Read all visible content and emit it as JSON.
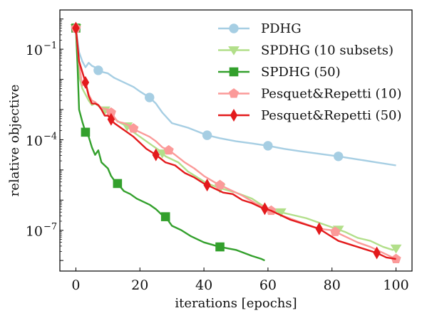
{
  "chart_data": {
    "type": "line",
    "title": "",
    "xlabel": "iterations [epochs]",
    "ylabel": "relative objective",
    "xlim": [
      -5,
      105
    ],
    "ylim_log10": [
      -8.35,
      0.3
    ],
    "yscale": "log",
    "x_ticks": [
      {
        "value": 0,
        "label": "0"
      },
      {
        "value": 20,
        "label": "20"
      },
      {
        "value": 40,
        "label": "40"
      },
      {
        "value": 60,
        "label": "60"
      },
      {
        "value": 80,
        "label": "80"
      },
      {
        "value": 100,
        "label": "100"
      }
    ],
    "y_ticks": [
      {
        "log10": -1,
        "base": "10",
        "exp": "−1"
      },
      {
        "log10": -4,
        "base": "10",
        "exp": "−4"
      },
      {
        "log10": -7,
        "base": "10",
        "exp": "−7"
      }
    ],
    "grid": false,
    "legend_position": "top-right",
    "series": [
      {
        "name": "PDHG",
        "color": "#a6cee3",
        "marker": "circle",
        "x": [
          0,
          1,
          2,
          3,
          4,
          5,
          6,
          7,
          8,
          10,
          12,
          14,
          16,
          18,
          20,
          23,
          25,
          27,
          30,
          35,
          41,
          45,
          50,
          55,
          60,
          65,
          70,
          75,
          82,
          88,
          94,
          100
        ],
        "log10": [
          -0.3,
          -1.1,
          -1.4,
          -1.6,
          -1.45,
          -1.55,
          -1.6,
          -1.7,
          -1.75,
          -1.8,
          -1.95,
          -2.05,
          -2.15,
          -2.25,
          -2.4,
          -2.6,
          -2.8,
          -3.1,
          -3.45,
          -3.6,
          -3.85,
          -3.95,
          -4.05,
          -4.12,
          -4.2,
          -4.3,
          -4.38,
          -4.45,
          -4.55,
          -4.65,
          -4.75,
          -4.85
        ],
        "markers_x": [
          0,
          7,
          23,
          41,
          60,
          82
        ]
      },
      {
        "name": "SPDHG (10 subsets)",
        "color": "#b2df8a",
        "marker": "triangle-down",
        "x": [
          0,
          1,
          2,
          3,
          4,
          5,
          6,
          8,
          10,
          12,
          14,
          16,
          18,
          20,
          22,
          24,
          26,
          28,
          30,
          32,
          35,
          38,
          41,
          45,
          50,
          55,
          60,
          64,
          68,
          72,
          76,
          80,
          84,
          88,
          92,
          96,
          99,
          100
        ],
        "log10": [
          -0.3,
          -1.9,
          -2.3,
          -2.5,
          -2.7,
          -2.85,
          -2.8,
          -2.95,
          -3.1,
          -3.3,
          -3.45,
          -3.55,
          -3.75,
          -3.9,
          -4.05,
          -4.2,
          -4.35,
          -4.55,
          -4.65,
          -4.75,
          -5.05,
          -5.25,
          -5.45,
          -5.6,
          -5.75,
          -5.95,
          -6.3,
          -6.4,
          -6.5,
          -6.6,
          -6.75,
          -6.9,
          -7.05,
          -7.25,
          -7.35,
          -7.55,
          -7.65,
          -7.6
        ],
        "markers_x": [
          0,
          9,
          16,
          27,
          45,
          64,
          82,
          100
        ]
      },
      {
        "name": "SPDHG (50)",
        "color": "#33a02c",
        "marker": "square",
        "x": [
          0,
          0.5,
          1,
          2,
          3,
          4,
          5,
          6,
          7,
          8,
          9,
          10,
          11,
          12,
          13,
          15,
          17,
          19,
          21,
          23,
          25,
          27,
          28,
          30,
          33,
          36,
          40,
          45,
          50,
          55,
          58,
          59
        ],
        "log10": [
          -0.3,
          -1.5,
          -3.0,
          -3.4,
          -3.75,
          -3.9,
          -4.25,
          -4.5,
          -4.35,
          -4.75,
          -4.85,
          -4.95,
          -5.2,
          -5.35,
          -5.45,
          -5.7,
          -5.8,
          -5.95,
          -6.05,
          -6.15,
          -6.3,
          -6.5,
          -6.55,
          -6.85,
          -7.0,
          -7.2,
          -7.4,
          -7.55,
          -7.65,
          -7.85,
          -7.95,
          -8.0
        ],
        "markers_x": [
          0,
          3,
          13,
          28,
          45
        ]
      },
      {
        "name": "Pesquet&Repetti (10)",
        "color": "#fb9a99",
        "marker": "pentagon",
        "x": [
          0,
          1,
          2,
          3,
          4,
          5,
          6,
          8,
          10,
          11,
          13,
          15,
          17,
          19,
          21,
          23,
          25,
          27,
          29,
          31,
          34,
          37,
          40,
          44,
          48,
          52,
          56,
          60,
          64,
          68,
          72,
          76,
          80,
          84,
          88,
          92,
          96,
          100
        ],
        "log10": [
          -0.3,
          -1.5,
          -2.2,
          -2.1,
          -2.5,
          -2.7,
          -2.75,
          -2.95,
          -3.0,
          -3.1,
          -3.4,
          -3.45,
          -3.55,
          -3.7,
          -3.8,
          -3.9,
          -4.05,
          -4.25,
          -4.35,
          -4.5,
          -4.75,
          -4.95,
          -5.2,
          -5.45,
          -5.65,
          -5.85,
          -6.1,
          -6.3,
          -6.5,
          -6.65,
          -6.8,
          -6.95,
          -7.0,
          -7.2,
          -7.4,
          -7.55,
          -7.75,
          -7.95
        ],
        "markers_x": [
          0,
          11,
          18,
          29,
          45,
          61,
          81,
          100
        ]
      },
      {
        "name": "Pesquet&Repetti (50)",
        "color": "#e31a1c",
        "marker": "diamond",
        "x": [
          0,
          1,
          2,
          3,
          4,
          5,
          6,
          7,
          8,
          9,
          10,
          12,
          14,
          16,
          18,
          20,
          22,
          25,
          28,
          31,
          34,
          37,
          40,
          43,
          46,
          49,
          52,
          55,
          58,
          61,
          64,
          67,
          70,
          73,
          76,
          79,
          82,
          85,
          88,
          91,
          94,
          97,
          100
        ],
        "log10": [
          -0.3,
          -1.4,
          -1.75,
          -2.1,
          -2.55,
          -2.8,
          -2.8,
          -2.85,
          -3.0,
          -3.2,
          -3.2,
          -3.45,
          -3.6,
          -3.75,
          -3.9,
          -4.1,
          -4.3,
          -4.5,
          -4.75,
          -4.85,
          -5.1,
          -5.25,
          -5.45,
          -5.6,
          -5.75,
          -5.8,
          -6.0,
          -6.1,
          -6.25,
          -6.35,
          -6.5,
          -6.65,
          -6.75,
          -6.85,
          -6.95,
          -7.15,
          -7.35,
          -7.45,
          -7.55,
          -7.65,
          -7.75,
          -7.9,
          -7.95
        ],
        "markers_x": [
          0,
          3,
          11,
          25,
          41,
          59,
          76,
          94
        ]
      }
    ]
  }
}
